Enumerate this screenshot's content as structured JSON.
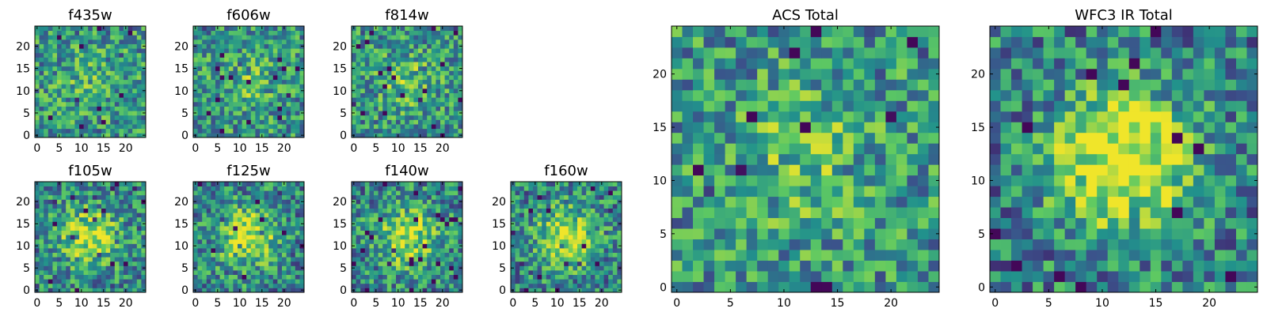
{
  "chart_data": [
    {
      "type": "heatmap",
      "title": "f435w",
      "xticks": [
        0,
        5,
        10,
        15,
        20
      ],
      "yticks": [
        0,
        5,
        10,
        15,
        20
      ],
      "xlim": [
        -0.5,
        24.5
      ],
      "ylim": [
        -0.5,
        24.5
      ],
      "grid": "off",
      "colormap": "viridis",
      "pixels": 25,
      "pattern": "noise",
      "seed": 11,
      "strength": 0.15
    },
    {
      "type": "heatmap",
      "title": "f606w",
      "xticks": [
        0,
        5,
        10,
        15,
        20
      ],
      "yticks": [
        0,
        5,
        10,
        15,
        20
      ],
      "xlim": [
        -0.5,
        24.5
      ],
      "ylim": [
        -0.5,
        24.5
      ],
      "grid": "off",
      "colormap": "viridis",
      "pixels": 25,
      "pattern": "noise",
      "seed": 23,
      "strength": 0.2
    },
    {
      "type": "heatmap",
      "title": "f814w",
      "xticks": [
        0,
        5,
        10,
        15,
        20
      ],
      "yticks": [
        0,
        5,
        10,
        15,
        20
      ],
      "xlim": [
        -0.5,
        24.5
      ],
      "ylim": [
        -0.5,
        24.5
      ],
      "grid": "off",
      "colormap": "viridis",
      "pixels": 25,
      "pattern": "noise+source",
      "seed": 37,
      "strength": 0.25
    },
    {
      "type": "heatmap",
      "title": "f105w",
      "xticks": [
        0,
        5,
        10,
        15,
        20
      ],
      "yticks": [
        0,
        5,
        10,
        15,
        20
      ],
      "xlim": [
        -0.5,
        24.5
      ],
      "ylim": [
        -0.5,
        24.5
      ],
      "grid": "off",
      "colormap": "viridis",
      "pixels": 25,
      "pattern": "source",
      "seed": 41,
      "strength": 0.55
    },
    {
      "type": "heatmap",
      "title": "f125w",
      "xticks": [
        0,
        5,
        10,
        15,
        20
      ],
      "yticks": [
        0,
        5,
        10,
        15,
        20
      ],
      "xlim": [
        -0.5,
        24.5
      ],
      "ylim": [
        -0.5,
        24.5
      ],
      "grid": "off",
      "colormap": "viridis",
      "pixels": 25,
      "pattern": "source",
      "seed": 53,
      "strength": 0.6
    },
    {
      "type": "heatmap",
      "title": "f140w",
      "xticks": [
        0,
        5,
        10,
        15,
        20
      ],
      "yticks": [
        0,
        5,
        10,
        15,
        20
      ],
      "xlim": [
        -0.5,
        24.5
      ],
      "ylim": [
        -0.5,
        24.5
      ],
      "grid": "off",
      "colormap": "viridis",
      "pixels": 25,
      "pattern": "source",
      "seed": 67,
      "strength": 0.55
    },
    {
      "type": "heatmap",
      "title": "f160w",
      "xticks": [
        0,
        5,
        10,
        15,
        20
      ],
      "yticks": [
        0,
        5,
        10,
        15,
        20
      ],
      "xlim": [
        -0.5,
        24.5
      ],
      "ylim": [
        -0.5,
        24.5
      ],
      "grid": "off",
      "colormap": "viridis",
      "pixels": 25,
      "pattern": "source",
      "seed": 79,
      "strength": 0.6
    },
    {
      "type": "heatmap",
      "title": "ACS Total",
      "xticks": [
        0,
        5,
        10,
        15,
        20
      ],
      "yticks": [
        0,
        5,
        10,
        15,
        20
      ],
      "xlim": [
        -0.5,
        24.5
      ],
      "ylim": [
        -0.5,
        24.5
      ],
      "grid": "off",
      "colormap": "viridis",
      "pixels": 25,
      "pattern": "noise+source",
      "seed": 97,
      "strength": 0.25
    },
    {
      "type": "heatmap",
      "title": "WFC3 IR Total",
      "xticks": [
        0,
        5,
        10,
        15,
        20
      ],
      "yticks": [
        0,
        5,
        10,
        15,
        20
      ],
      "xlim": [
        -0.5,
        24.5
      ],
      "ylim": [
        -0.5,
        24.5
      ],
      "grid": "off",
      "colormap": "viridis",
      "pixels": 25,
      "pattern": "source",
      "seed": 113,
      "strength": 0.8
    }
  ],
  "colors": {
    "axis": "#000000",
    "colormap": [
      "#440154",
      "#3b528b",
      "#21918c",
      "#5ec962",
      "#fde725"
    ]
  }
}
